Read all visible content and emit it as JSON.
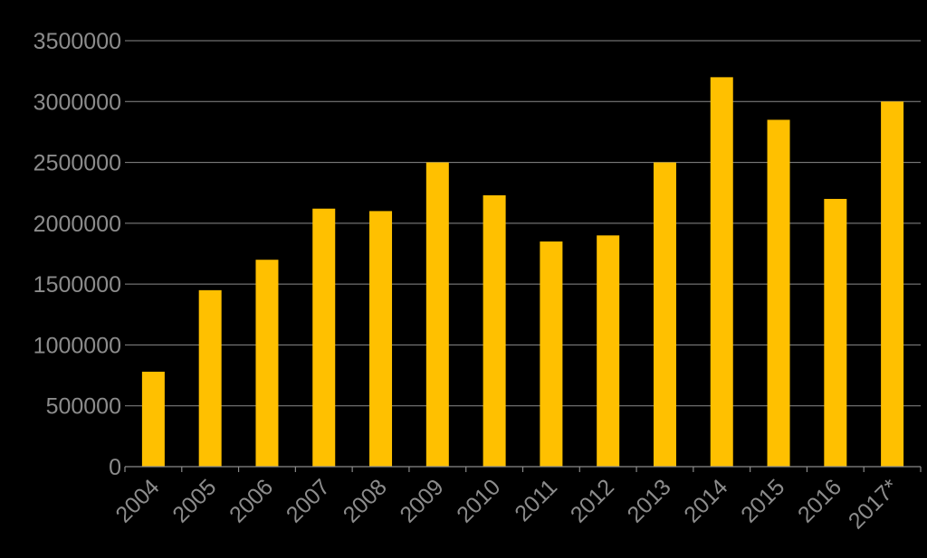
{
  "chart_data": {
    "type": "bar",
    "title": "",
    "xlabel": "",
    "ylabel": "",
    "categories": [
      "2004",
      "2005",
      "2006",
      "2007",
      "2008",
      "2009",
      "2010",
      "2011",
      "2012",
      "2013",
      "2014",
      "2015",
      "2016",
      "2017*"
    ],
    "values": [
      780000,
      1450000,
      1700000,
      2120000,
      2100000,
      2500000,
      2230000,
      1850000,
      1900000,
      2500000,
      3200000,
      2850000,
      2200000,
      3000000
    ],
    "ylim": [
      0,
      3500000
    ],
    "yticks": [
      "0",
      "500000",
      "1000000",
      "1500000",
      "2000000",
      "2500000",
      "3000000",
      "3500000"
    ],
    "ytick_values": [
      0,
      500000,
      1000000,
      1500000,
      2000000,
      2500000,
      3000000,
      3500000
    ],
    "grid": true,
    "legend": "none",
    "bar_color": "#FFC000",
    "background_color": "#000000",
    "text_color": "#8C8C8C"
  }
}
